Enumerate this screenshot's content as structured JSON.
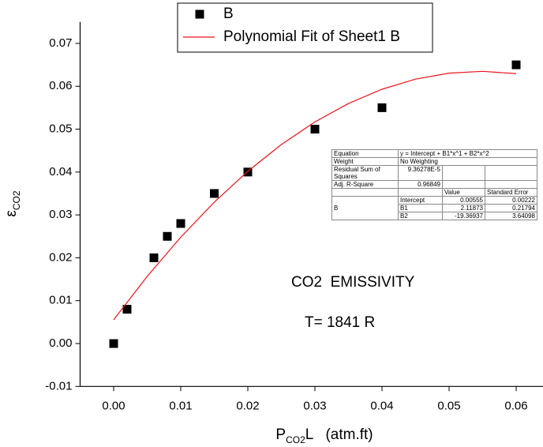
{
  "chart_data": {
    "type": "scatter",
    "y_label": {
      "symbol": "ε",
      "sub": "CO2"
    },
    "x_label": {
      "main": "P",
      "sub": "CO2",
      "rest": "L   (atm.ft)"
    },
    "xlim": [
      -0.005,
      0.064
    ],
    "ylim": [
      -0.01,
      0.075
    ],
    "xticks": [
      {
        "value": 0,
        "label": "0.00"
      },
      0.01,
      0.02,
      0.03,
      0.04,
      0.05,
      0.06
    ],
    "yticks": [
      -0.01,
      {
        "value": 0,
        "label": "0.00"
      },
      0.01,
      0.02,
      0.03,
      0.04,
      0.05,
      0.06,
      0.07
    ],
    "series": [
      {
        "name": "B",
        "color": "#000000",
        "marker": "square",
        "x": [
          0,
          0.002,
          0.006,
          0.008,
          0.01,
          0.015,
          0.02,
          0.03,
          0.04,
          0.06
        ],
        "values": [
          0,
          0.008,
          0.02,
          0.025,
          0.028,
          0.035,
          0.04,
          0.05,
          0.055,
          0.065
        ]
      },
      {
        "name": "Polynomial Fit of Sheet1 B",
        "color": "#e8141b",
        "marker": "line",
        "x": [
          0,
          0.005,
          0.01,
          0.015,
          0.02,
          0.025,
          0.03,
          0.035,
          0.04,
          0.045,
          0.05,
          0.055,
          0.06
        ],
        "values": [
          0.00555,
          0.01566,
          0.0248,
          0.03297,
          0.04018,
          0.04641,
          0.05168,
          0.05598,
          0.05931,
          0.06167,
          0.06306,
          0.06349,
          0.06294
        ]
      }
    ],
    "annotations": [
      "CO2  EMISSIVITY",
      "T= 1841 R"
    ],
    "stats_table": {
      "rows": [
        [
          "Equation",
          "y = Intercept + B1*x^1 + B2*x^2"
        ],
        [
          "Weight",
          "No Weighting"
        ],
        [
          "Residual Sum of Squares",
          "9.36278E-5"
        ],
        [
          "Adj. R-Square",
          0.96849
        ]
      ],
      "columns": [
        "Value",
        "Standard Error"
      ],
      "group": "B",
      "params": [
        [
          "Intercept",
          0.00555,
          0.00222
        ],
        [
          "B1",
          2.11873,
          0.21794
        ],
        [
          "B2",
          -19.36937,
          3.64098
        ]
      ]
    }
  }
}
